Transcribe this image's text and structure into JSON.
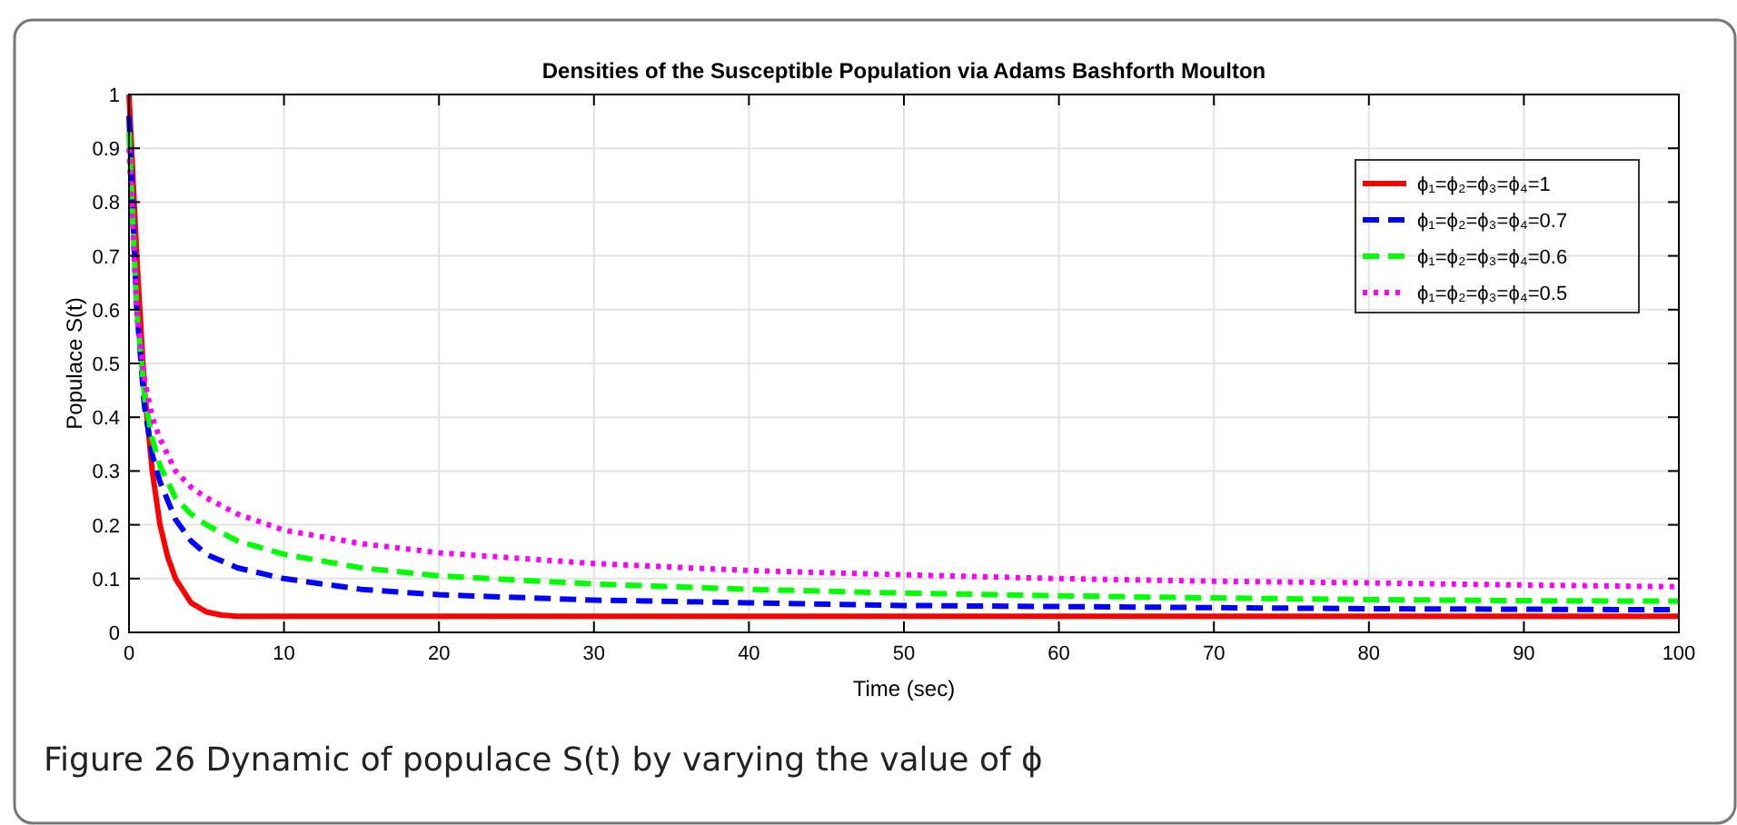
{
  "chart_data": {
    "type": "line",
    "title": "Densities of the Susceptible Population via Adams Bashforth Moulton",
    "xlabel": "Time (sec)",
    "ylabel": "Populace S(t)",
    "xlim": [
      0,
      100
    ],
    "ylim": [
      0,
      1
    ],
    "xticks": [
      0,
      10,
      20,
      30,
      40,
      50,
      60,
      70,
      80,
      90,
      100
    ],
    "yticks": [
      0,
      0.1,
      0.2,
      0.3,
      0.4,
      0.5,
      0.6,
      0.7,
      0.8,
      0.9,
      1
    ],
    "grid": true,
    "legend": "top right",
    "annotations": [
      "Figure 26  Dynamic of populace S(t) by varying the value of ϕ"
    ],
    "series": [
      {
        "name": "ϕ₁=ϕ₂=ϕ₃=ϕ₄=1",
        "color": "#ff0000",
        "line_style": "solid",
        "x": [
          0,
          0.5,
          1,
          1.5,
          2,
          2.5,
          3,
          4,
          5,
          6,
          7,
          10,
          20,
          40,
          60,
          80,
          100
        ],
        "values": [
          1,
          0.7,
          0.45,
          0.3,
          0.2,
          0.14,
          0.1,
          0.055,
          0.038,
          0.032,
          0.03,
          0.03,
          0.03,
          0.03,
          0.03,
          0.03,
          0.03
        ]
      },
      {
        "name": "ϕ₁=ϕ₂=ϕ₃=ϕ₄=0.7",
        "color": "#0000ff",
        "line_style": "dashed",
        "x": [
          0,
          0.5,
          1,
          1.5,
          2,
          3,
          4,
          5,
          7,
          10,
          15,
          20,
          30,
          40,
          50,
          60,
          70,
          80,
          90,
          100
        ],
        "values": [
          0.96,
          0.6,
          0.42,
          0.33,
          0.28,
          0.21,
          0.17,
          0.145,
          0.12,
          0.1,
          0.08,
          0.07,
          0.06,
          0.055,
          0.05,
          0.048,
          0.046,
          0.044,
          0.043,
          0.042
        ]
      },
      {
        "name": "ϕ₁=ϕ₂=ϕ₃=ϕ₄=0.6",
        "color": "#00ff00",
        "line_style": "dashed",
        "x": [
          0,
          0.5,
          1,
          1.5,
          2,
          3,
          4,
          5,
          7,
          10,
          15,
          20,
          30,
          40,
          50,
          60,
          70,
          80,
          90,
          100
        ],
        "values": [
          0.93,
          0.6,
          0.44,
          0.36,
          0.31,
          0.25,
          0.22,
          0.2,
          0.17,
          0.145,
          0.12,
          0.105,
          0.09,
          0.08,
          0.073,
          0.068,
          0.064,
          0.061,
          0.059,
          0.058
        ]
      },
      {
        "name": "ϕ₁=ϕ₂=ϕ₃=ϕ₄=0.5",
        "color": "#ff00ff",
        "line_style": "dotted",
        "x": [
          0,
          0.5,
          1,
          1.5,
          2,
          3,
          4,
          5,
          7,
          10,
          15,
          20,
          30,
          40,
          50,
          60,
          70,
          80,
          90,
          100
        ],
        "values": [
          0.9,
          0.6,
          0.47,
          0.4,
          0.36,
          0.3,
          0.27,
          0.25,
          0.22,
          0.19,
          0.165,
          0.148,
          0.128,
          0.115,
          0.107,
          0.1,
          0.095,
          0.092,
          0.088,
          0.085
        ]
      }
    ]
  }
}
